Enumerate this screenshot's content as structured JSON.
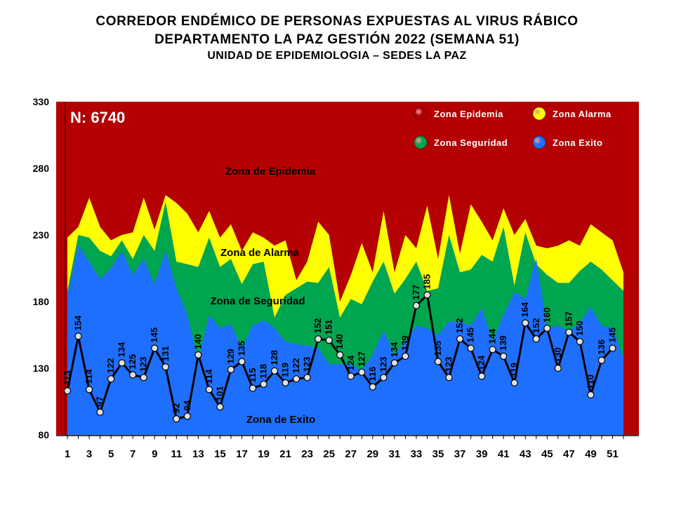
{
  "header": {
    "title_line1": "CORREDOR ENDÉMICO DE PERSONAS EXPUESTAS AL VIRUS RÁBICO",
    "title_line2": "DEPARTAMENTO  LA PAZ GESTIÓN 2022 (SEMANA 51)",
    "subtitle": "UNIDAD DE EPIDEMIOLOGIA – SEDES LA PAZ"
  },
  "colors": {
    "epidemia": "#b40000",
    "alarma": "#ffff00",
    "seguridad": "#00a550",
    "exito": "#1f6fff",
    "line": "#000000",
    "marker_fill": "#e0e0e0"
  },
  "chart_data": {
    "type": "area",
    "n_label": "N: 6740",
    "ylim": [
      80,
      330
    ],
    "y_ticks": [
      80,
      130,
      180,
      230,
      280,
      330
    ],
    "x_tick_labels": [
      "1",
      "3",
      "5",
      "7",
      "9",
      "11",
      "13",
      "15",
      "17",
      "19",
      "21",
      "23",
      "25",
      "27",
      "29",
      "31",
      "33",
      "35",
      "37",
      "39",
      "41",
      "43",
      "45",
      "47",
      "49",
      "51"
    ],
    "weeks": [
      1,
      2,
      3,
      4,
      5,
      6,
      7,
      8,
      9,
      10,
      11,
      12,
      13,
      14,
      15,
      16,
      17,
      18,
      19,
      20,
      21,
      22,
      23,
      24,
      25,
      26,
      27,
      28,
      29,
      30,
      31,
      32,
      33,
      34,
      35,
      36,
      37,
      38,
      39,
      40,
      41,
      42,
      43,
      44,
      45,
      46,
      47,
      48,
      49,
      50,
      51,
      52
    ],
    "zone_labels": {
      "epidemia": "Zona de Epidemia",
      "alarma": "Zona de Alarma",
      "seguridad": "Zona de Seguridad",
      "exito": "Zona de Exito"
    },
    "legend": [
      {
        "key": "epidemia",
        "label": "Zona Epidemia"
      },
      {
        "key": "alarma",
        "label": "Zona Alarma"
      },
      {
        "key": "seguridad",
        "label": "Zona Seguridad"
      },
      {
        "key": "exito",
        "label": "Zona Exito"
      }
    ],
    "legend_placement": "top-right",
    "series": [
      {
        "key": "exito",
        "values": [
          185,
          222,
          210,
          197,
          205,
          218,
          200,
          212,
          193,
          218,
          190,
          170,
          136,
          170,
          160,
          163,
          145,
          162,
          166,
          160,
          150,
          148,
          147,
          145,
          133,
          133,
          133,
          128,
          140,
          158,
          140,
          150,
          162,
          160,
          155,
          165,
          165,
          162,
          175,
          150,
          170,
          187,
          182,
          212,
          160,
          162,
          158,
          164,
          176,
          162,
          160,
          138
        ]
      },
      {
        "key": "seguridad",
        "values": [
          188,
          230,
          228,
          218,
          214,
          226,
          212,
          230,
          218,
          255,
          210,
          208,
          206,
          228,
          206,
          212,
          193,
          208,
          210,
          168,
          185,
          190,
          195,
          194,
          206,
          168,
          182,
          178,
          195,
          210,
          186,
          197,
          210,
          188,
          190,
          230,
          202,
          204,
          215,
          210,
          236,
          192,
          232,
          208,
          200,
          194,
          194,
          203,
          210,
          204,
          196,
          188
        ]
      },
      {
        "key": "alarma",
        "values": [
          228,
          236,
          258,
          236,
          226,
          230,
          232,
          258,
          234,
          260,
          254,
          246,
          232,
          248,
          228,
          238,
          218,
          232,
          228,
          222,
          226,
          196,
          210,
          240,
          230,
          180,
          200,
          224,
          202,
          248,
          202,
          230,
          220,
          252,
          212,
          260,
          216,
          253,
          240,
          226,
          250,
          230,
          242,
          222,
          220,
          222,
          226,
          222,
          238,
          232,
          226,
          202
        ]
      }
    ],
    "observed": [
      113,
      154,
      114,
      97,
      122,
      134,
      125,
      123,
      145,
      131,
      92,
      94,
      140,
      114,
      101,
      129,
      135,
      115,
      118,
      128,
      119,
      122,
      123,
      152,
      151,
      140,
      124,
      127,
      116,
      123,
      134,
      139,
      177,
      185,
      135,
      123,
      152,
      145,
      124,
      144,
      139,
      119,
      164,
      152,
      160,
      130,
      157,
      150,
      110,
      136,
      145
    ]
  }
}
